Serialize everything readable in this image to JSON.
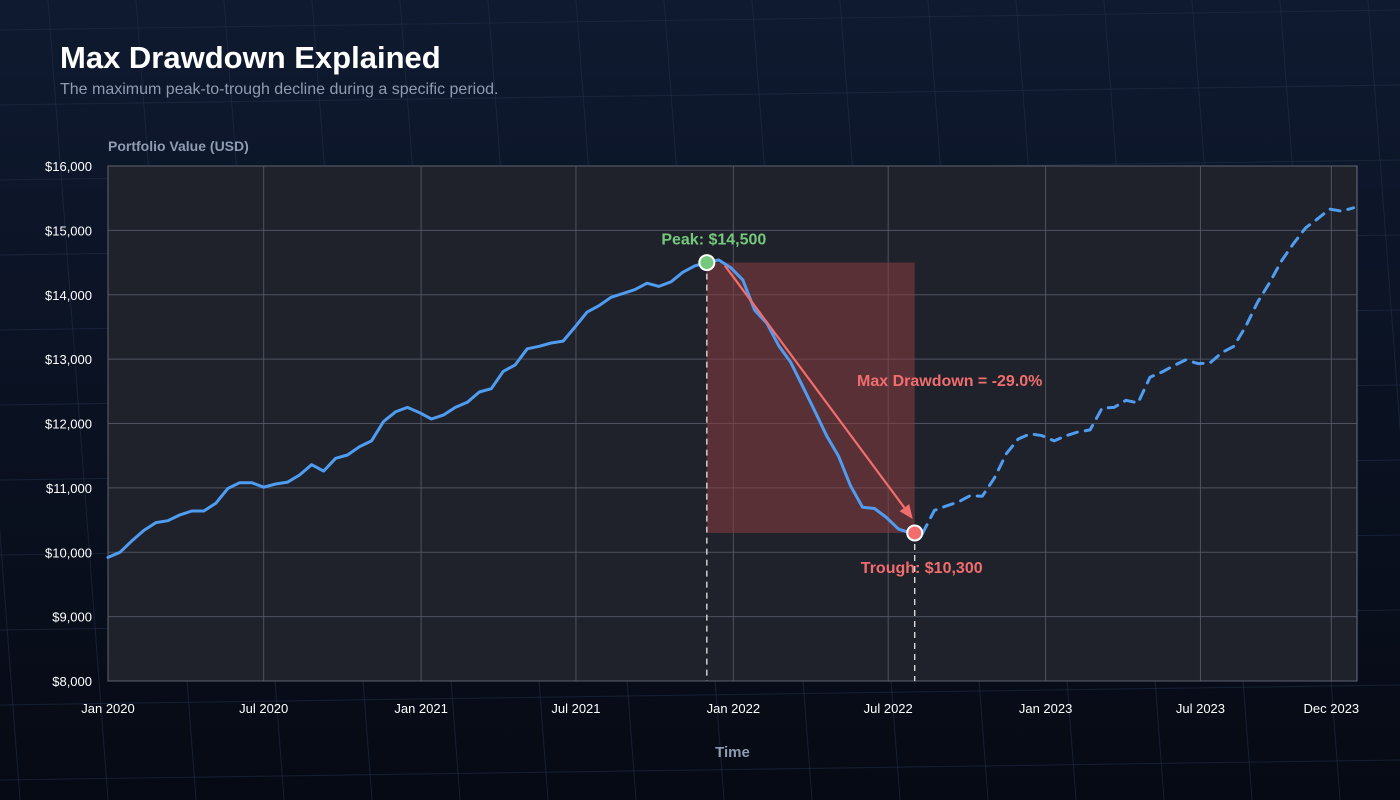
{
  "title": "Max Drawdown Explained",
  "subtitle": "The maximum peak-to-trough decline during a specific period.",
  "colors": {
    "background": "#0c1424",
    "plot_background": "#1f222b",
    "line": "#4f9cf0",
    "peak": "#74c97c",
    "trough": "#f26d6d",
    "drawdown_fill": "#8a3c42",
    "grid": "#5a5f6b",
    "text": "#ffffff",
    "muted": "#8f9bb0"
  },
  "chart_data": {
    "type": "line",
    "title": "Max Drawdown Explained",
    "subtitle": "The maximum peak-to-trough decline during a specific period.",
    "xlabel": "Time",
    "ylabel": "Portfolio Value (USD)",
    "ylim": [
      8000,
      16000
    ],
    "yticks": [
      8000,
      9000,
      10000,
      11000,
      12000,
      13000,
      14000,
      15000,
      16000
    ],
    "ytick_labels": [
      "$8,000",
      "$9,000",
      "$10,000",
      "$11,000",
      "$12,000",
      "$13,000",
      "$14,000",
      "$15,000",
      "$16,000"
    ],
    "xlim": [
      "2020-01-01",
      "2023-12-31"
    ],
    "xticks": [
      "2020-01-01",
      "2020-07-01",
      "2021-01-01",
      "2021-07-01",
      "2022-01-01",
      "2022-07-01",
      "2023-01-01",
      "2023-07-01",
      "2023-12-01"
    ],
    "xtick_labels": [
      "Jan 2020",
      "Jul 2020",
      "Jan 2021",
      "Jul 2021",
      "Jan 2022",
      "Jul 2022",
      "Jan 2023",
      "Jul 2023",
      "Dec 2023"
    ],
    "grid": true,
    "series": [
      {
        "style": "solid",
        "points": [
          [
            "2020-01-01",
            9920
          ],
          [
            "2020-01-15",
            10000
          ],
          [
            "2020-01-29",
            10180
          ],
          [
            "2020-02-12",
            10340
          ],
          [
            "2020-02-26",
            10460
          ],
          [
            "2020-03-11",
            10490
          ],
          [
            "2020-03-25",
            10580
          ],
          [
            "2020-04-08",
            10640
          ],
          [
            "2020-04-22",
            10640
          ],
          [
            "2020-05-06",
            10760
          ],
          [
            "2020-05-20",
            10990
          ],
          [
            "2020-06-03",
            11080
          ],
          [
            "2020-06-17",
            11080
          ],
          [
            "2020-07-01",
            11010
          ],
          [
            "2020-07-15",
            11060
          ],
          [
            "2020-07-29",
            11090
          ],
          [
            "2020-08-12",
            11200
          ],
          [
            "2020-08-26",
            11360
          ],
          [
            "2020-09-09",
            11260
          ],
          [
            "2020-09-23",
            11460
          ],
          [
            "2020-10-07",
            11510
          ],
          [
            "2020-10-21",
            11640
          ],
          [
            "2020-11-04",
            11730
          ],
          [
            "2020-11-18",
            12030
          ],
          [
            "2020-12-02",
            12180
          ],
          [
            "2020-12-16",
            12250
          ],
          [
            "2020-12-30",
            12170
          ],
          [
            "2021-01-13",
            12070
          ],
          [
            "2021-01-27",
            12130
          ],
          [
            "2021-02-10",
            12250
          ],
          [
            "2021-02-24",
            12330
          ],
          [
            "2021-03-10",
            12490
          ],
          [
            "2021-03-24",
            12540
          ],
          [
            "2021-04-07",
            12810
          ],
          [
            "2021-04-21",
            12910
          ],
          [
            "2021-05-05",
            13160
          ],
          [
            "2021-05-19",
            13200
          ],
          [
            "2021-06-02",
            13250
          ],
          [
            "2021-06-16",
            13280
          ],
          [
            "2021-06-30",
            13500
          ],
          [
            "2021-07-14",
            13730
          ],
          [
            "2021-07-28",
            13830
          ],
          [
            "2021-08-11",
            13960
          ],
          [
            "2021-08-25",
            14020
          ],
          [
            "2021-09-08",
            14080
          ],
          [
            "2021-09-22",
            14180
          ],
          [
            "2021-10-06",
            14130
          ],
          [
            "2021-10-20",
            14200
          ],
          [
            "2021-11-03",
            14350
          ],
          [
            "2021-11-17",
            14450
          ],
          [
            "2021-12-01",
            14500
          ],
          [
            "2021-12-15",
            14540
          ],
          [
            "2021-12-29",
            14420
          ],
          [
            "2022-01-12",
            14230
          ],
          [
            "2022-01-26",
            13760
          ],
          [
            "2022-02-09",
            13560
          ],
          [
            "2022-02-23",
            13210
          ],
          [
            "2022-03-09",
            12950
          ],
          [
            "2022-03-23",
            12580
          ],
          [
            "2022-04-06",
            12200
          ],
          [
            "2022-04-20",
            11810
          ],
          [
            "2022-05-04",
            11490
          ],
          [
            "2022-05-18",
            11030
          ],
          [
            "2022-06-01",
            10700
          ],
          [
            "2022-06-15",
            10680
          ],
          [
            "2022-06-29",
            10540
          ],
          [
            "2022-07-13",
            10360
          ],
          [
            "2022-07-27",
            10300
          ],
          [
            "2022-08-10",
            10290
          ]
        ]
      },
      {
        "style": "dashed",
        "points": [
          [
            "2022-08-10",
            10290
          ],
          [
            "2022-08-24",
            10650
          ],
          [
            "2022-09-07",
            10720
          ],
          [
            "2022-09-21",
            10780
          ],
          [
            "2022-10-05",
            10880
          ],
          [
            "2022-10-19",
            10870
          ],
          [
            "2022-11-02",
            11150
          ],
          [
            "2022-11-16",
            11530
          ],
          [
            "2022-11-30",
            11760
          ],
          [
            "2022-12-14",
            11840
          ],
          [
            "2022-12-28",
            11810
          ],
          [
            "2023-01-11",
            11730
          ],
          [
            "2023-01-25",
            11810
          ],
          [
            "2023-02-08",
            11870
          ],
          [
            "2023-02-22",
            11900
          ],
          [
            "2023-03-08",
            12240
          ],
          [
            "2023-03-22",
            12250
          ],
          [
            "2023-04-05",
            12360
          ],
          [
            "2023-04-19",
            12320
          ],
          [
            "2023-05-03",
            12720
          ],
          [
            "2023-05-17",
            12800
          ],
          [
            "2023-05-31",
            12900
          ],
          [
            "2023-06-14",
            12990
          ],
          [
            "2023-06-28",
            12930
          ],
          [
            "2023-07-12",
            12940
          ],
          [
            "2023-07-26",
            13100
          ],
          [
            "2023-08-09",
            13200
          ],
          [
            "2023-08-23",
            13510
          ],
          [
            "2023-09-06",
            13890
          ],
          [
            "2023-09-20",
            14190
          ],
          [
            "2023-10-04",
            14530
          ],
          [
            "2023-10-18",
            14800
          ],
          [
            "2023-11-01",
            15040
          ],
          [
            "2023-11-15",
            15180
          ],
          [
            "2023-11-29",
            15330
          ],
          [
            "2023-12-13",
            15300
          ],
          [
            "2023-12-27",
            15350
          ]
        ]
      }
    ],
    "peak": {
      "date": "2021-12-01",
      "value": 14500,
      "label": "Peak: $14,500"
    },
    "trough": {
      "date": "2022-08-01",
      "value": 10300,
      "label": "Trough: $10,300"
    },
    "drawdown": {
      "value_pct": -29.0,
      "label": "Max Drawdown = -29.0%"
    }
  }
}
